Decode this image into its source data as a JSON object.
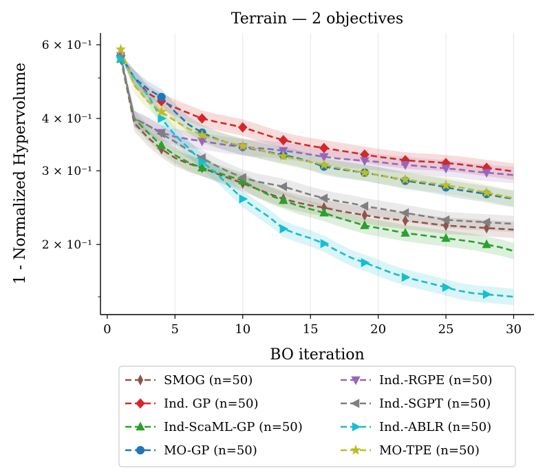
{
  "chart_data": {
    "type": "line",
    "title": "Terrain — 2 objectives",
    "xlabel": "BO iteration",
    "ylabel": "1 - Normalized Hypervolume",
    "xlim": [
      -0.5,
      31.5
    ],
    "ylim": [
      0.136,
      0.64
    ],
    "yscale": "log",
    "grid": "x",
    "x_ticks": [
      0,
      5,
      10,
      15,
      20,
      25,
      30
    ],
    "y_ticks": [
      {
        "value": 0.2,
        "label": "2 × 10⁻¹"
      },
      {
        "value": 0.3,
        "label": "3 × 10⁻¹"
      },
      {
        "value": 0.4,
        "label": "4 × 10⁻¹"
      },
      {
        "value": 0.6,
        "label": "6 × 10⁻¹"
      }
    ],
    "x": [
      1,
      2,
      3,
      4,
      5,
      6,
      7,
      8,
      9,
      10,
      11,
      12,
      13,
      14,
      15,
      16,
      17,
      18,
      19,
      20,
      21,
      22,
      23,
      24,
      25,
      26,
      27,
      28,
      29,
      30
    ],
    "marker_every": 3,
    "legend_position": "below-center",
    "series": [
      {
        "name": "SMOG (n=50)",
        "color": "#8c564b",
        "marker": "diamond-thin",
        "values": [
          0.555,
          0.39,
          0.36,
          0.338,
          0.322,
          0.312,
          0.305,
          0.296,
          0.288,
          0.28,
          0.272,
          0.264,
          0.257,
          0.252,
          0.248,
          0.245,
          0.241,
          0.238,
          0.235,
          0.232,
          0.23,
          0.228,
          0.226,
          0.224,
          0.222,
          0.221,
          0.22,
          0.219,
          0.218,
          0.217
        ]
      },
      {
        "name": "Ind. GP (n=50)",
        "color": "#d62728",
        "marker": "diamond",
        "values": [
          0.565,
          0.5,
          0.46,
          0.44,
          0.425,
          0.412,
          0.4,
          0.393,
          0.387,
          0.381,
          0.372,
          0.363,
          0.355,
          0.349,
          0.344,
          0.34,
          0.336,
          0.332,
          0.328,
          0.324,
          0.321,
          0.318,
          0.316,
          0.315,
          0.313,
          0.311,
          0.308,
          0.305,
          0.302,
          0.299
        ]
      },
      {
        "name": "Ind-ScaML-GP (n=50)",
        "color": "#2ca02c",
        "marker": "triangle-up",
        "values": [
          0.555,
          0.4,
          0.37,
          0.345,
          0.327,
          0.314,
          0.305,
          0.298,
          0.291,
          0.284,
          0.272,
          0.262,
          0.255,
          0.248,
          0.243,
          0.238,
          0.232,
          0.227,
          0.222,
          0.219,
          0.216,
          0.213,
          0.211,
          0.209,
          0.207,
          0.205,
          0.203,
          0.2,
          0.197,
          0.193
        ]
      },
      {
        "name": "MO-GP (n=50)",
        "color": "#1f77b4",
        "marker": "circle",
        "values": [
          0.565,
          0.5,
          0.47,
          0.45,
          0.415,
          0.387,
          0.37,
          0.358,
          0.349,
          0.342,
          0.337,
          0.332,
          0.327,
          0.322,
          0.315,
          0.307,
          0.303,
          0.3,
          0.297,
          0.293,
          0.289,
          0.284,
          0.281,
          0.278,
          0.274,
          0.27,
          0.267,
          0.264,
          0.26,
          0.257
        ]
      },
      {
        "name": "Ind.-RGPE (n=50)",
        "color": "#9467bd",
        "marker": "triangle-down",
        "values": [
          0.565,
          0.4,
          0.385,
          0.37,
          0.362,
          0.357,
          0.353,
          0.349,
          0.345,
          0.342,
          0.34,
          0.338,
          0.335,
          0.332,
          0.328,
          0.324,
          0.321,
          0.319,
          0.317,
          0.315,
          0.312,
          0.31,
          0.308,
          0.306,
          0.304,
          0.302,
          0.299,
          0.297,
          0.295,
          0.293
        ]
      },
      {
        "name": "Ind.-SGPT (n=50)",
        "color": "#7f7f7f",
        "marker": "triangle-left",
        "values": [
          0.56,
          0.4,
          0.385,
          0.368,
          0.352,
          0.336,
          0.322,
          0.309,
          0.298,
          0.289,
          0.283,
          0.279,
          0.275,
          0.269,
          0.263,
          0.258,
          0.254,
          0.251,
          0.247,
          0.244,
          0.241,
          0.238,
          0.235,
          0.232,
          0.229,
          0.228,
          0.227,
          0.226,
          0.225,
          0.224
        ]
      },
      {
        "name": "Ind.-ABLR (n=50)",
        "color": "#17becf",
        "marker": "triangle-right",
        "values": [
          0.555,
          0.5,
          0.455,
          0.4,
          0.365,
          0.34,
          0.315,
          0.297,
          0.276,
          0.257,
          0.244,
          0.232,
          0.218,
          0.212,
          0.207,
          0.201,
          0.193,
          0.186,
          0.181,
          0.176,
          0.171,
          0.167,
          0.164,
          0.161,
          0.158,
          0.155,
          0.153,
          0.152,
          0.151,
          0.15
        ]
      },
      {
        "name": "MO-TPE (n=50)",
        "color": "#bcbd22",
        "marker": "star",
        "values": [
          0.585,
          0.48,
          0.44,
          0.415,
          0.395,
          0.378,
          0.365,
          0.357,
          0.35,
          0.344,
          0.338,
          0.331,
          0.325,
          0.32,
          0.315,
          0.31,
          0.305,
          0.301,
          0.297,
          0.293,
          0.289,
          0.286,
          0.283,
          0.28,
          0.277,
          0.274,
          0.27,
          0.266,
          0.262,
          0.258
        ]
      }
    ]
  }
}
